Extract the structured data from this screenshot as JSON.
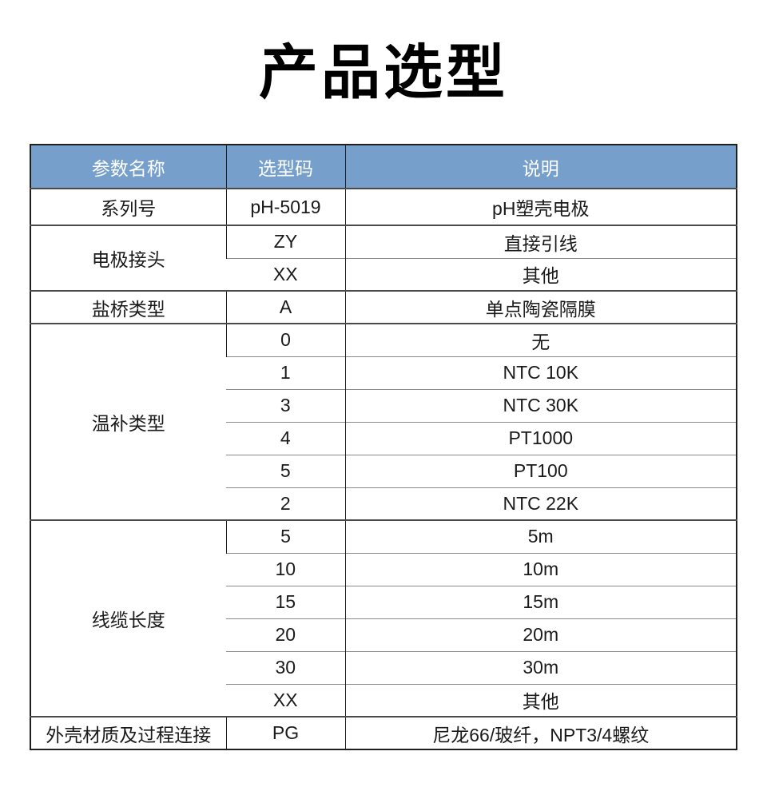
{
  "page": {
    "title": "产品选型"
  },
  "table": {
    "headers": [
      "参数名称",
      "选型码",
      "说明"
    ],
    "groups": [
      {
        "param": "系列号",
        "rows": [
          {
            "code": "pH-5019",
            "desc": "pH塑壳电极"
          }
        ]
      },
      {
        "param": "电极接头",
        "rows": [
          {
            "code": "ZY",
            "desc": "直接引线"
          },
          {
            "code": "XX",
            "desc": "其他"
          }
        ]
      },
      {
        "param": "盐桥类型",
        "rows": [
          {
            "code": "A",
            "desc": "单点陶瓷隔膜"
          }
        ]
      },
      {
        "param": "温补类型",
        "rows": [
          {
            "code": "0",
            "desc": "无"
          },
          {
            "code": "1",
            "desc": "NTC 10K"
          },
          {
            "code": "3",
            "desc": "NTC 30K"
          },
          {
            "code": "4",
            "desc": "PT1000"
          },
          {
            "code": "5",
            "desc": "PT100"
          },
          {
            "code": "2",
            "desc": "NTC 22K"
          }
        ]
      },
      {
        "param": "线缆长度",
        "rows": [
          {
            "code": "5",
            "desc": "5m"
          },
          {
            "code": "10",
            "desc": "10m"
          },
          {
            "code": "15",
            "desc": "15m"
          },
          {
            "code": "20",
            "desc": "20m"
          },
          {
            "code": "30",
            "desc": "30m"
          },
          {
            "code": "XX",
            "desc": "其他"
          }
        ]
      },
      {
        "param": "外壳材质及过程连接",
        "rows": [
          {
            "code": "PG",
            "desc": "尼龙66/玻纤，NPT3/4螺纹"
          }
        ]
      }
    ],
    "colors": {
      "header_bg": "#76A0CB",
      "header_text": "#FFFFFF"
    }
  }
}
